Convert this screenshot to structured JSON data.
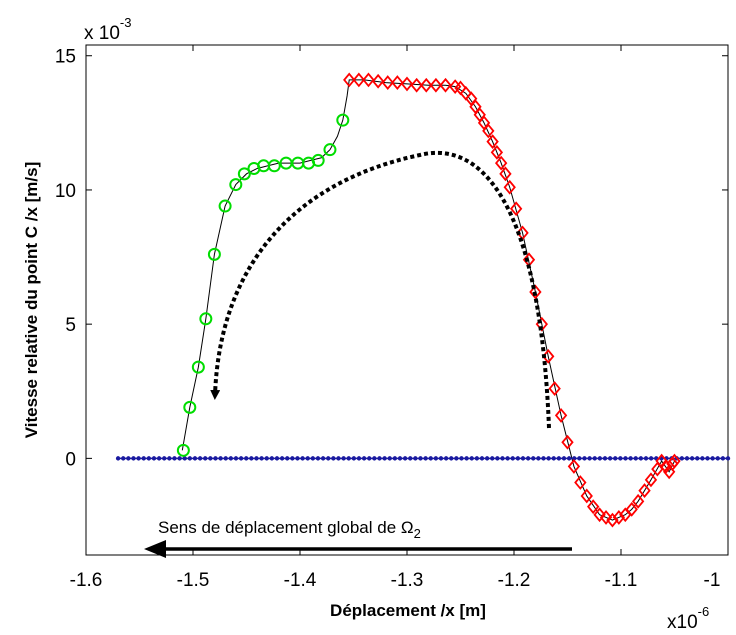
{
  "chart_data": {
    "type": "scatter",
    "xlabel": "Déplacement /x [m]",
    "ylabel": "Vitesse relative du point C /x [m/s]",
    "x_multiplier_label": {
      "base": "x10",
      "exp": "-6"
    },
    "y_multiplier_label": {
      "base": "x 10",
      "exp": "-3"
    },
    "xlim": [
      -1.6,
      -1.0
    ],
    "ylim": [
      -3.6,
      15.4
    ],
    "x_ticks": [
      -1.6,
      -1.5,
      -1.4,
      -1.3,
      -1.2,
      -1.1,
      -1.0
    ],
    "x_tick_labels": [
      "-1.6",
      "-1.5",
      "-1.4",
      "-1.3",
      "-1.2",
      "-1.1",
      "-1"
    ],
    "y_ticks": [
      0,
      5,
      10,
      15
    ],
    "y_tick_labels": [
      "0",
      "5",
      "10",
      "15"
    ],
    "grid": false,
    "annotation": {
      "text": "Sens de déplacement global de Ω",
      "subscript": "2"
    },
    "series": [
      {
        "marker": "circle",
        "color": "#00dd00",
        "x": [
          -1.509,
          -1.503,
          -1.495,
          -1.488,
          -1.48,
          -1.47,
          -1.46,
          -1.452,
          -1.443,
          -1.434,
          -1.424,
          -1.413,
          -1.402,
          -1.392,
          -1.383,
          -1.372,
          -1.36
        ],
        "y": [
          0.3,
          1.9,
          3.4,
          5.2,
          7.6,
          9.4,
          10.2,
          10.6,
          10.8,
          10.9,
          10.9,
          11.0,
          11.0,
          11.0,
          11.1,
          11.5,
          12.6
        ]
      },
      {
        "marker": "diamond",
        "color": "#ff0000",
        "x": [
          -1.354,
          -1.345,
          -1.336,
          -1.327,
          -1.318,
          -1.309,
          -1.3,
          -1.291,
          -1.282,
          -1.273,
          -1.264,
          -1.255,
          -1.25,
          -1.245,
          -1.24,
          -1.236,
          -1.232,
          -1.228,
          -1.224,
          -1.22,
          -1.216,
          -1.212,
          -1.208,
          -1.204,
          -1.198,
          -1.192,
          -1.186,
          -1.18,
          -1.174,
          -1.168,
          -1.162,
          -1.156,
          -1.15,
          -1.144,
          -1.138,
          -1.132,
          -1.126,
          -1.12,
          -1.114,
          -1.108,
          -1.102,
          -1.096,
          -1.09,
          -1.084,
          -1.078,
          -1.072,
          -1.066,
          -1.062,
          -1.058,
          -1.055,
          -1.052,
          -1.05
        ],
        "y": [
          14.1,
          14.1,
          14.1,
          14.05,
          14.0,
          14.0,
          13.95,
          13.9,
          13.9,
          13.9,
          13.9,
          13.85,
          13.8,
          13.6,
          13.4,
          13.1,
          12.8,
          12.5,
          12.2,
          11.8,
          11.4,
          11.0,
          10.6,
          10.1,
          9.3,
          8.4,
          7.4,
          6.2,
          5.0,
          3.8,
          2.6,
          1.6,
          0.6,
          -0.3,
          -0.9,
          -1.4,
          -1.8,
          -2.1,
          -2.2,
          -2.3,
          -2.2,
          -2.1,
          -1.9,
          -1.6,
          -1.2,
          -0.8,
          -0.4,
          -0.1,
          -0.3,
          -0.5,
          -0.2,
          -0.1
        ]
      },
      {
        "marker": "dot",
        "color": "#1a1aa0",
        "x_start": -1.57,
        "x_end": -1.0,
        "count": 120,
        "y": 0
      }
    ],
    "guide_line": {
      "color": "#000000",
      "x": [
        -1.51,
        -1.503,
        -1.495,
        -1.488,
        -1.48,
        -1.47,
        -1.46,
        -1.45,
        -1.44,
        -1.43,
        -1.42,
        -1.41,
        -1.4,
        -1.39,
        -1.38,
        -1.372,
        -1.365,
        -1.36,
        -1.356,
        -1.354,
        -1.34,
        -1.32,
        -1.3,
        -1.28,
        -1.264,
        -1.255,
        -1.245,
        -1.236,
        -1.228,
        -1.22,
        -1.212,
        -1.204,
        -1.192,
        -1.18,
        -1.168,
        -1.156,
        -1.144,
        -1.132,
        -1.12,
        -1.108,
        -1.096,
        -1.09,
        -1.084,
        -1.072,
        -1.062,
        -1.055,
        -1.05
      ],
      "y": [
        0.3,
        1.9,
        3.4,
        5.2,
        7.6,
        9.4,
        10.2,
        10.6,
        10.8,
        10.9,
        11.0,
        11.0,
        11.0,
        11.1,
        11.2,
        11.5,
        12.0,
        12.6,
        13.5,
        14.1,
        14.1,
        14.0,
        13.95,
        13.9,
        13.9,
        13.85,
        13.6,
        13.1,
        12.5,
        11.8,
        11.0,
        10.1,
        8.4,
        6.2,
        3.8,
        1.6,
        -0.3,
        -1.4,
        -2.1,
        -2.3,
        -2.1,
        -1.9,
        -1.6,
        -0.8,
        -0.1,
        -0.5,
        -0.1
      ]
    }
  }
}
